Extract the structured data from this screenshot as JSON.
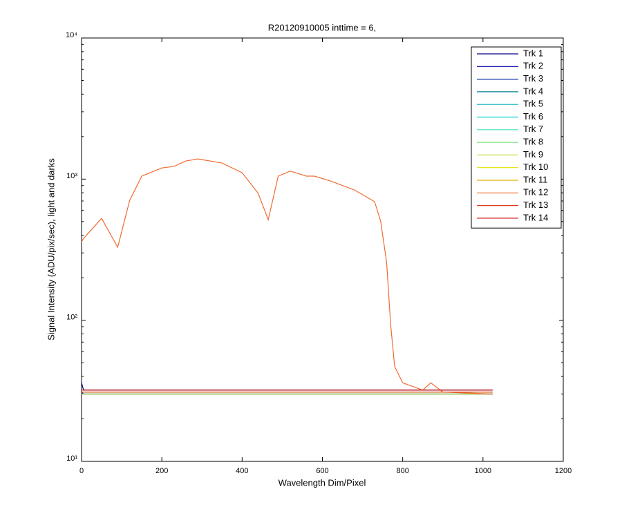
{
  "chart_data": {
    "type": "line",
    "title": "R20120910005 inttime = 6,",
    "xlabel": "Wavelength Dim/Pixel",
    "ylabel": "Signal Intensity (ADU/pix/sec), light and darks",
    "yscale": "log",
    "xlim": [
      0,
      1200
    ],
    "xticks": [
      0,
      200,
      400,
      600,
      800,
      1000,
      1200
    ],
    "ylim": [
      10,
      10000
    ],
    "yticks": [
      {
        "value": 10,
        "label": "10¹"
      },
      {
        "value": 100,
        "label": "10²"
      },
      {
        "value": 1000,
        "label": "10³"
      },
      {
        "value": 10000,
        "label": "10⁴"
      }
    ],
    "legend": "northeast",
    "x": [
      0,
      5,
      50,
      90,
      120,
      150,
      200,
      230,
      260,
      290,
      350,
      400,
      440,
      465,
      490,
      520,
      560,
      580,
      620,
      680,
      730,
      745,
      760,
      770,
      780,
      800,
      850,
      870,
      900,
      1024
    ],
    "series": [
      {
        "name": "Trk 1",
        "color": "#00008b",
        "values": [
          36,
          32,
          32,
          32,
          32,
          32,
          32,
          32,
          32,
          32,
          32,
          32,
          32,
          32,
          32,
          32,
          32,
          32,
          32,
          32,
          32,
          32,
          32,
          32,
          32,
          32,
          32,
          32,
          32,
          32
        ]
      },
      {
        "name": "Trk 2",
        "color": "#0000a8",
        "values": [
          31,
          30,
          30,
          30,
          30,
          30,
          30,
          30,
          30,
          30,
          30,
          30,
          30,
          30,
          30,
          30,
          30,
          30,
          30,
          30,
          30,
          30,
          30,
          30,
          30,
          30,
          30,
          30,
          30,
          30
        ]
      },
      {
        "name": "Trk 3",
        "color": "#0030a0",
        "values": [
          31,
          31,
          31,
          31,
          31,
          31,
          31,
          31,
          31,
          31,
          31,
          31,
          31,
          31,
          31,
          31,
          31,
          31,
          31,
          31,
          31,
          31,
          31,
          31,
          31,
          31,
          31,
          31,
          31,
          31
        ]
      },
      {
        "name": "Trk 4",
        "color": "#007f8f",
        "values": [
          30,
          30,
          30,
          30,
          30,
          30,
          30,
          30,
          30,
          30,
          30,
          30,
          30,
          30,
          30,
          30,
          30,
          30,
          30,
          30,
          30,
          30,
          30,
          30,
          30,
          30,
          30,
          30,
          30,
          30
        ]
      },
      {
        "name": "Trk 5",
        "color": "#00b0c0",
        "values": [
          31,
          31,
          31,
          31,
          31,
          31,
          31,
          31,
          31,
          31,
          31,
          31,
          31,
          31,
          31,
          31,
          31,
          31,
          31,
          31,
          31,
          31,
          31,
          31,
          31,
          31,
          31,
          31,
          31,
          31
        ]
      },
      {
        "name": "Trk 6",
        "color": "#00d0d0",
        "values": [
          31,
          31,
          31,
          31,
          31,
          31,
          31,
          31,
          31,
          31,
          31,
          31,
          31,
          31,
          31,
          31,
          31,
          31,
          31,
          31,
          31,
          31,
          31,
          31,
          31,
          31,
          31,
          31,
          31,
          31
        ]
      },
      {
        "name": "Trk 7",
        "color": "#40e0c0",
        "values": [
          31,
          31,
          31,
          31,
          31,
          31,
          31,
          31,
          31,
          31,
          31,
          31,
          31,
          31,
          31,
          31,
          31,
          31,
          31,
          31,
          31,
          31,
          31,
          31,
          31,
          31,
          31,
          31,
          31,
          31
        ]
      },
      {
        "name": "Trk 8",
        "color": "#80e080",
        "values": [
          31,
          31,
          31,
          31,
          31,
          31,
          31,
          31,
          31,
          31,
          31,
          31,
          31,
          31,
          31,
          31,
          31,
          31,
          31,
          31,
          31,
          31,
          31,
          31,
          31,
          31,
          31,
          31,
          31,
          31
        ]
      },
      {
        "name": "Trk 9",
        "color": "#c0e040",
        "values": [
          30,
          30,
          30,
          30,
          30,
          30,
          30,
          30,
          30,
          30,
          30,
          30,
          30,
          30,
          30,
          30,
          30,
          30,
          30,
          30,
          30,
          30,
          30,
          30,
          30,
          30,
          30,
          30,
          30,
          30
        ]
      },
      {
        "name": "Trk 10",
        "color": "#e0e000",
        "values": [
          31,
          31,
          31,
          31,
          31,
          31,
          31,
          31,
          31,
          31,
          31,
          31,
          31,
          31,
          31,
          31,
          31,
          31,
          31,
          31,
          31,
          31,
          31,
          31,
          31,
          31,
          31,
          31,
          31,
          31
        ]
      },
      {
        "name": "Trk 11",
        "color": "#e0b000",
        "values": [
          31,
          31,
          31,
          31,
          31,
          31,
          31,
          31,
          31,
          31,
          31,
          31,
          31,
          31,
          31,
          31,
          31,
          31,
          31,
          31,
          31,
          31,
          31,
          31,
          31,
          31,
          31,
          31,
          31,
          31
        ]
      },
      {
        "name": "Trk 12",
        "color": "#f06a30",
        "values": [
          360,
          380,
          527,
          329,
          708,
          1050,
          1200,
          1230,
          1345,
          1390,
          1300,
          1110,
          793,
          516,
          1050,
          1140,
          1050,
          1050,
          970,
          837,
          692,
          505,
          257,
          93,
          47,
          36,
          32,
          36,
          31,
          30
        ]
      },
      {
        "name": "Trk 13",
        "color": "#e04020",
        "values": [
          31,
          31,
          31,
          31,
          31,
          31,
          31,
          31,
          31,
          31,
          31,
          31,
          31,
          31,
          31,
          31,
          31,
          31,
          31,
          31,
          31,
          31,
          31,
          31,
          31,
          31,
          31,
          31,
          31,
          31
        ]
      },
      {
        "name": "Trk 14",
        "color": "#d01818",
        "values": [
          32,
          32,
          32,
          32,
          32,
          32,
          32,
          32,
          32,
          32,
          32,
          32,
          32,
          32,
          32,
          32,
          32,
          32,
          32,
          32,
          32,
          32,
          32,
          32,
          32,
          32,
          32,
          32,
          32,
          32
        ]
      }
    ]
  }
}
